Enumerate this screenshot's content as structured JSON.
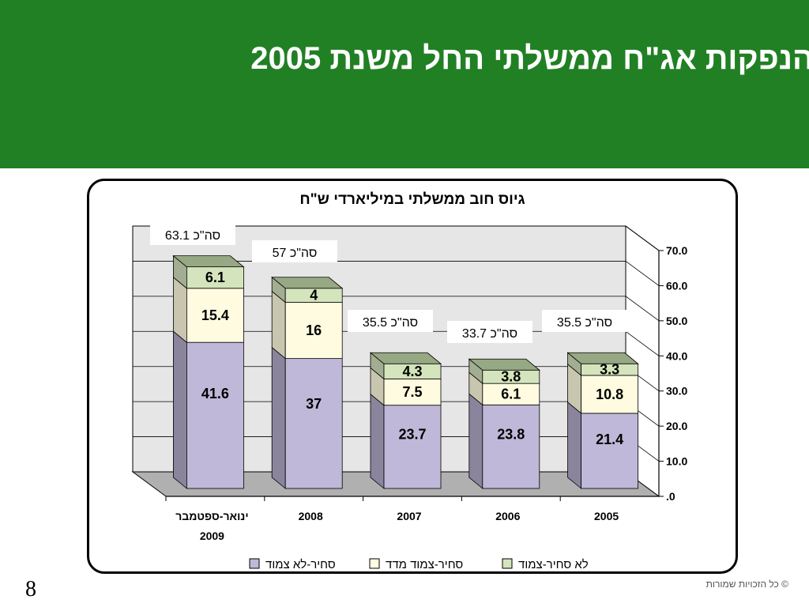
{
  "slide": {
    "title": "הנפקות אג\"ח ממשלתי החל משנת 2005",
    "page_number": "8",
    "copyright": "© כל הזכויות שמורות"
  },
  "colors": {
    "banner": "#218024",
    "series_bottom": "#c0b8d8",
    "series_middle": "#fffbe0",
    "series_top": "#d4e4bc"
  },
  "chart_data": {
    "type": "bar",
    "stacked": true,
    "three_d": true,
    "title": "גיוס חוב ממשלתי במיליארדי ש\"ח",
    "categories": [
      "ינואר-ספטמבר 2009",
      "2008",
      "2007",
      "2006",
      "2005"
    ],
    "series": [
      {
        "name": "סחיר-לא צמוד",
        "values": [
          41.6,
          37,
          23.7,
          23.8,
          21.4
        ]
      },
      {
        "name": "סחיר-צמוד מדד",
        "values": [
          15.4,
          16,
          7.5,
          6.1,
          10.8
        ]
      },
      {
        "name": "לא סחיר-צמוד",
        "values": [
          6.1,
          4,
          4.3,
          3.8,
          3.3
        ]
      }
    ],
    "totals": [
      "סה\"כ 63.1",
      "סה\"כ 57",
      "סה\"כ 35.5",
      "סה\"כ 33.7",
      "סה\"כ 35.5"
    ],
    "y_ticks": [
      ".0",
      "10.0",
      "20.0",
      "30.0",
      "40.0",
      "50.0",
      "60.0",
      "70.0"
    ],
    "ylim": [
      0,
      70
    ],
    "y_axis_side": "right",
    "grid": true,
    "legend_position": "bottom"
  }
}
